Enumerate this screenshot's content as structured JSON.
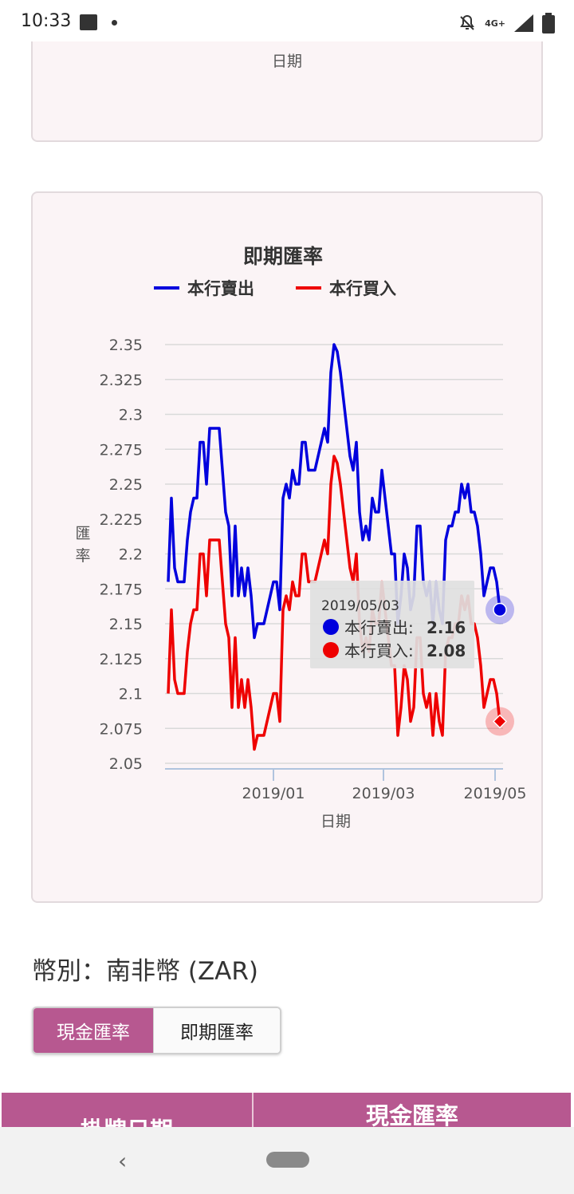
{
  "status_bar": {
    "time": "10:33",
    "network": "4G+"
  },
  "top_chart": {
    "xlabel": "日期"
  },
  "chart_data": {
    "type": "line",
    "title": "即期匯率",
    "xlabel": "日期",
    "ylabel": "匯率",
    "ylim": [
      2.05,
      2.35
    ],
    "y_ticks": [
      "2.35",
      "2.325",
      "2.3",
      "2.275",
      "2.25",
      "2.225",
      "2.2",
      "2.175",
      "2.15",
      "2.125",
      "2.1",
      "2.075",
      "2.05"
    ],
    "x_ticks": [
      "2019/01",
      "2019/03",
      "2019/05"
    ],
    "legend_position": "top",
    "grid": true,
    "series": [
      {
        "name": "本行賣出",
        "color": "#0000dd",
        "values": [
          2.18,
          2.24,
          2.19,
          2.18,
          2.18,
          2.18,
          2.21,
          2.23,
          2.24,
          2.24,
          2.28,
          2.28,
          2.25,
          2.29,
          2.29,
          2.29,
          2.29,
          2.26,
          2.23,
          2.22,
          2.17,
          2.22,
          2.17,
          2.19,
          2.17,
          2.19,
          2.17,
          2.14,
          2.15,
          2.15,
          2.15,
          2.16,
          2.17,
          2.18,
          2.18,
          2.16,
          2.24,
          2.25,
          2.24,
          2.26,
          2.25,
          2.25,
          2.28,
          2.28,
          2.26,
          2.26,
          2.26,
          2.27,
          2.28,
          2.29,
          2.28,
          2.33,
          2.35,
          2.345,
          2.33,
          2.31,
          2.29,
          2.27,
          2.26,
          2.28,
          2.23,
          2.21,
          2.22,
          2.21,
          2.24,
          2.23,
          2.23,
          2.26,
          2.24,
          2.22,
          2.2,
          2.2,
          2.15,
          2.17,
          2.2,
          2.19,
          2.16,
          2.17,
          2.22,
          2.22,
          2.18,
          2.17,
          2.18,
          2.15,
          2.18,
          2.16,
          2.15,
          2.21,
          2.22,
          2.22,
          2.23,
          2.23,
          2.25,
          2.24,
          2.25,
          2.23,
          2.23,
          2.22,
          2.2,
          2.17,
          2.18,
          2.19,
          2.19,
          2.18,
          2.16
        ]
      },
      {
        "name": "本行買入",
        "color": "#ee0000",
        "values": [
          2.1,
          2.16,
          2.11,
          2.1,
          2.1,
          2.1,
          2.13,
          2.15,
          2.16,
          2.16,
          2.2,
          2.2,
          2.17,
          2.21,
          2.21,
          2.21,
          2.21,
          2.18,
          2.15,
          2.14,
          2.09,
          2.14,
          2.09,
          2.11,
          2.09,
          2.11,
          2.09,
          2.06,
          2.07,
          2.07,
          2.07,
          2.08,
          2.09,
          2.1,
          2.1,
          2.08,
          2.16,
          2.17,
          2.16,
          2.18,
          2.17,
          2.17,
          2.2,
          2.2,
          2.18,
          2.18,
          2.18,
          2.19,
          2.2,
          2.21,
          2.2,
          2.25,
          2.27,
          2.265,
          2.25,
          2.23,
          2.21,
          2.19,
          2.18,
          2.2,
          2.15,
          2.13,
          2.14,
          2.13,
          2.16,
          2.15,
          2.15,
          2.18,
          2.16,
          2.14,
          2.12,
          2.12,
          2.07,
          2.09,
          2.12,
          2.11,
          2.08,
          2.09,
          2.14,
          2.14,
          2.1,
          2.09,
          2.1,
          2.07,
          2.1,
          2.08,
          2.07,
          2.13,
          2.14,
          2.14,
          2.15,
          2.15,
          2.17,
          2.16,
          2.17,
          2.15,
          2.15,
          2.14,
          2.12,
          2.09,
          2.1,
          2.11,
          2.11,
          2.1,
          2.08
        ]
      }
    ],
    "tooltip": {
      "date": "2019/05/03",
      "sell_label": "本行賣出:",
      "sell_value": "2.16",
      "buy_label": "本行買入:",
      "buy_value": "2.08"
    }
  },
  "currency": {
    "label": "幣別：南非幣 (ZAR)"
  },
  "toggle": {
    "cash": "現金匯率",
    "spot": "即期匯率"
  },
  "table": {
    "header_date": "掛牌日期",
    "header_cash": "現金匯率"
  },
  "colors": {
    "accent": "#b75890",
    "sell": "#0000dd",
    "buy": "#ee0000"
  }
}
